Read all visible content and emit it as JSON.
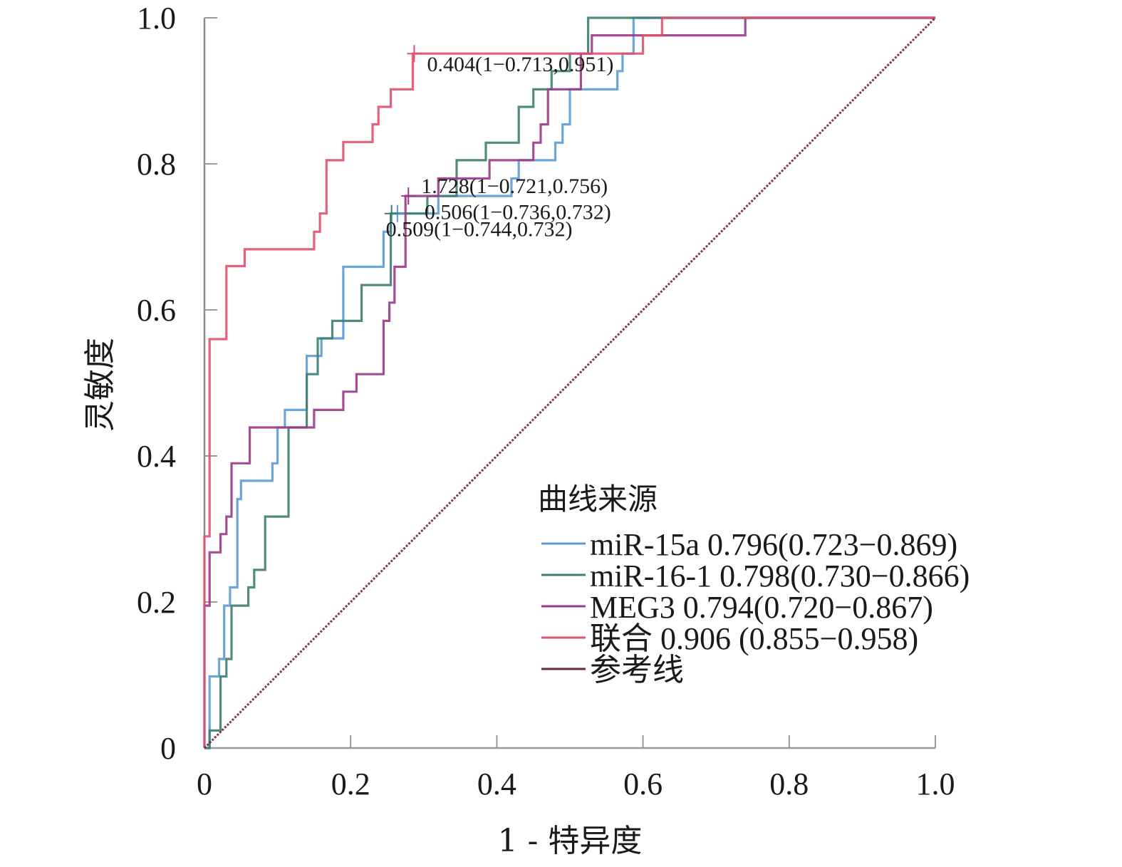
{
  "chart_data": {
    "type": "line",
    "title": "",
    "xlabel": "1 - 特异度",
    "ylabel": "灵敏度",
    "xlim": [
      0,
      1
    ],
    "ylim": [
      0,
      1
    ],
    "x_ticks": [
      0,
      0.2,
      0.4,
      0.6,
      0.8,
      1.0
    ],
    "y_ticks": [
      0,
      0.2,
      0.4,
      0.6,
      0.8,
      1.0
    ],
    "x_tick_labels": [
      "0",
      "0.2",
      "0.4",
      "0.6",
      "0.8",
      "1.0"
    ],
    "y_tick_labels": [
      "0",
      "0.2",
      "0.4",
      "0.6",
      "0.8",
      "1.0"
    ],
    "grid": false,
    "legend": {
      "title": "曲线来源",
      "position": "bottom-right",
      "entries": [
        {
          "label": "miR-15a 0.796(0.723−0.869)",
          "color": "#5b9bd5"
        },
        {
          "label": "miR-16-1 0.798(0.730−0.866)",
          "color": "#3e7e72"
        },
        {
          "label": "MEG3 0.794(0.720−0.867)",
          "color": "#9b3a86"
        },
        {
          "label": "联合 0.906 (0.855−0.958)",
          "color": "#e0506e"
        },
        {
          "label": "参考线",
          "color": "#6b2a3a"
        }
      ]
    },
    "annotations": [
      {
        "text": "0.404(1−0.713,0.951)",
        "x": 0.287,
        "y": 0.951,
        "series": "联合"
      },
      {
        "text": "1.728(1−0.721,0.756)",
        "x": 0.279,
        "y": 0.756,
        "series": "MEG3"
      },
      {
        "text": "0.506(1−0.736,0.732)",
        "x": 0.264,
        "y": 0.732,
        "series": "miR-15a"
      },
      {
        "text": "0.509(1−0.744,0.732)",
        "x": 0.256,
        "y": 0.732,
        "series": "miR-16-1"
      }
    ],
    "series": [
      {
        "name": "miR-15a",
        "color": "#5b9bd5",
        "auc": 0.796,
        "ci": [
          0.723,
          0.869
        ],
        "points": [
          [
            0,
            0
          ],
          [
            0.007,
            0
          ],
          [
            0.007,
            0.098
          ],
          [
            0.02,
            0.098
          ],
          [
            0.02,
            0.122
          ],
          [
            0.027,
            0.122
          ],
          [
            0.027,
            0.195
          ],
          [
            0.035,
            0.195
          ],
          [
            0.035,
            0.22
          ],
          [
            0.045,
            0.22
          ],
          [
            0.045,
            0.341
          ],
          [
            0.05,
            0.341
          ],
          [
            0.05,
            0.366
          ],
          [
            0.093,
            0.366
          ],
          [
            0.093,
            0.39
          ],
          [
            0.1,
            0.39
          ],
          [
            0.1,
            0.439
          ],
          [
            0.11,
            0.439
          ],
          [
            0.11,
            0.463
          ],
          [
            0.14,
            0.463
          ],
          [
            0.14,
            0.537
          ],
          [
            0.16,
            0.537
          ],
          [
            0.16,
            0.561
          ],
          [
            0.19,
            0.561
          ],
          [
            0.19,
            0.659
          ],
          [
            0.245,
            0.659
          ],
          [
            0.245,
            0.707
          ],
          [
            0.255,
            0.707
          ],
          [
            0.255,
            0.732
          ],
          [
            0.32,
            0.732
          ],
          [
            0.32,
            0.756
          ],
          [
            0.42,
            0.756
          ],
          [
            0.42,
            0.78
          ],
          [
            0.43,
            0.78
          ],
          [
            0.43,
            0.805
          ],
          [
            0.48,
            0.805
          ],
          [
            0.48,
            0.829
          ],
          [
            0.49,
            0.829
          ],
          [
            0.49,
            0.854
          ],
          [
            0.5,
            0.854
          ],
          [
            0.5,
            0.902
          ],
          [
            0.565,
            0.902
          ],
          [
            0.565,
            0.927
          ],
          [
            0.572,
            0.927
          ],
          [
            0.572,
            0.951
          ],
          [
            0.587,
            0.951
          ],
          [
            0.587,
            1
          ],
          [
            1,
            1
          ]
        ]
      },
      {
        "name": "miR-16-1",
        "color": "#3e7e72",
        "auc": 0.798,
        "ci": [
          0.73,
          0.866
        ],
        "points": [
          [
            0,
            0
          ],
          [
            0.007,
            0
          ],
          [
            0.007,
            0.024
          ],
          [
            0.022,
            0.024
          ],
          [
            0.022,
            0.098
          ],
          [
            0.03,
            0.098
          ],
          [
            0.03,
            0.122
          ],
          [
            0.037,
            0.122
          ],
          [
            0.037,
            0.195
          ],
          [
            0.06,
            0.195
          ],
          [
            0.06,
            0.22
          ],
          [
            0.068,
            0.22
          ],
          [
            0.068,
            0.244
          ],
          [
            0.083,
            0.244
          ],
          [
            0.083,
            0.317
          ],
          [
            0.115,
            0.317
          ],
          [
            0.115,
            0.439
          ],
          [
            0.14,
            0.439
          ],
          [
            0.14,
            0.512
          ],
          [
            0.155,
            0.512
          ],
          [
            0.155,
            0.561
          ],
          [
            0.175,
            0.561
          ],
          [
            0.175,
            0.585
          ],
          [
            0.215,
            0.585
          ],
          [
            0.215,
            0.634
          ],
          [
            0.255,
            0.634
          ],
          [
            0.255,
            0.732
          ],
          [
            0.305,
            0.732
          ],
          [
            0.305,
            0.756
          ],
          [
            0.345,
            0.756
          ],
          [
            0.345,
            0.805
          ],
          [
            0.385,
            0.805
          ],
          [
            0.385,
            0.829
          ],
          [
            0.43,
            0.829
          ],
          [
            0.43,
            0.878
          ],
          [
            0.45,
            0.878
          ],
          [
            0.45,
            0.902
          ],
          [
            0.475,
            0.902
          ],
          [
            0.475,
            0.927
          ],
          [
            0.5,
            0.927
          ],
          [
            0.5,
            0.951
          ],
          [
            0.525,
            0.951
          ],
          [
            0.525,
            1
          ],
          [
            1,
            1
          ]
        ]
      },
      {
        "name": "MEG3",
        "color": "#9b3a86",
        "auc": 0.794,
        "ci": [
          0.72,
          0.867
        ],
        "points": [
          [
            0,
            0
          ],
          [
            0,
            0.195
          ],
          [
            0.007,
            0.195
          ],
          [
            0.007,
            0.268
          ],
          [
            0.022,
            0.268
          ],
          [
            0.022,
            0.293
          ],
          [
            0.03,
            0.293
          ],
          [
            0.03,
            0.317
          ],
          [
            0.037,
            0.317
          ],
          [
            0.037,
            0.39
          ],
          [
            0.062,
            0.39
          ],
          [
            0.062,
            0.439
          ],
          [
            0.15,
            0.439
          ],
          [
            0.15,
            0.463
          ],
          [
            0.19,
            0.463
          ],
          [
            0.19,
            0.488
          ],
          [
            0.208,
            0.488
          ],
          [
            0.208,
            0.512
          ],
          [
            0.245,
            0.512
          ],
          [
            0.245,
            0.585
          ],
          [
            0.253,
            0.585
          ],
          [
            0.253,
            0.61
          ],
          [
            0.26,
            0.61
          ],
          [
            0.26,
            0.659
          ],
          [
            0.275,
            0.659
          ],
          [
            0.275,
            0.756
          ],
          [
            0.32,
            0.756
          ],
          [
            0.32,
            0.78
          ],
          [
            0.39,
            0.78
          ],
          [
            0.39,
            0.805
          ],
          [
            0.45,
            0.805
          ],
          [
            0.45,
            0.829
          ],
          [
            0.46,
            0.829
          ],
          [
            0.46,
            0.854
          ],
          [
            0.47,
            0.854
          ],
          [
            0.47,
            0.902
          ],
          [
            0.515,
            0.902
          ],
          [
            0.515,
            0.951
          ],
          [
            0.53,
            0.951
          ],
          [
            0.53,
            0.976
          ],
          [
            0.74,
            0.976
          ],
          [
            0.74,
            1
          ],
          [
            1,
            1
          ]
        ]
      },
      {
        "name": "联合",
        "color": "#e0506e",
        "auc": 0.906,
        "ci": [
          0.855,
          0.958
        ],
        "points": [
          [
            0,
            0
          ],
          [
            0,
            0.29
          ],
          [
            0.007,
            0.29
          ],
          [
            0.007,
            0.56
          ],
          [
            0.03,
            0.56
          ],
          [
            0.03,
            0.66
          ],
          [
            0.055,
            0.66
          ],
          [
            0.055,
            0.683
          ],
          [
            0.15,
            0.683
          ],
          [
            0.15,
            0.707
          ],
          [
            0.158,
            0.707
          ],
          [
            0.158,
            0.732
          ],
          [
            0.167,
            0.732
          ],
          [
            0.167,
            0.805
          ],
          [
            0.19,
            0.805
          ],
          [
            0.19,
            0.83
          ],
          [
            0.23,
            0.83
          ],
          [
            0.23,
            0.854
          ],
          [
            0.238,
            0.854
          ],
          [
            0.238,
            0.878
          ],
          [
            0.255,
            0.878
          ],
          [
            0.255,
            0.902
          ],
          [
            0.285,
            0.902
          ],
          [
            0.285,
            0.951
          ],
          [
            0.6,
            0.951
          ],
          [
            0.6,
            0.976
          ],
          [
            0.626,
            0.976
          ],
          [
            0.626,
            1
          ],
          [
            1,
            1
          ]
        ]
      },
      {
        "name": "参考线",
        "color": "#6b2a3a",
        "points": [
          [
            0,
            0
          ],
          [
            1,
            1
          ]
        ]
      }
    ]
  }
}
